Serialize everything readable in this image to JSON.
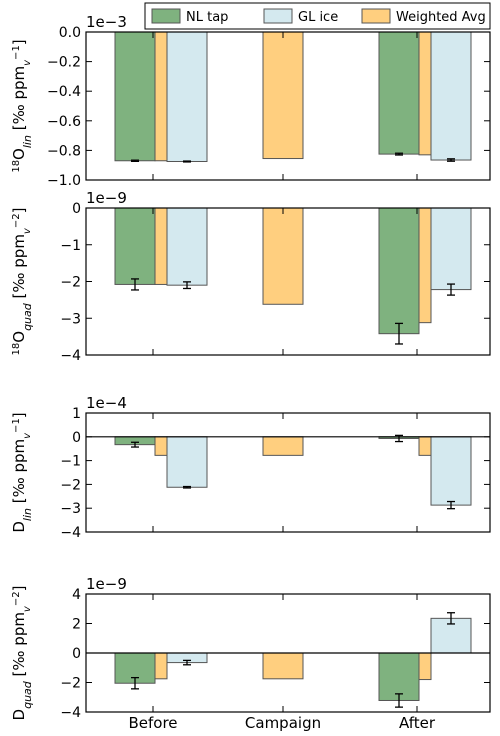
{
  "chart_data": [
    {
      "type": "bar",
      "categories": [
        "Before",
        "Campaign",
        "After"
      ],
      "ylabel": "18O_lin [‰ ppm_v^-1]",
      "ylabel_parts": {
        "sup": "18",
        "main": "O",
        "sub": "lin",
        "unit": " [‰ ppm",
        "unit_sub": "v",
        "unit_sup": "−1",
        "close": "]"
      },
      "multiplier": "1e−3",
      "ylim": [
        -1.0,
        0.0
      ],
      "yticks": [
        0.0,
        -0.2,
        -0.4,
        -0.6,
        -0.8,
        -1.0
      ],
      "ytick_labels": [
        "0.0",
        "−0.2",
        "−0.4",
        "−0.6",
        "−0.8",
        "−1.0"
      ],
      "series": [
        {
          "name": "NL tap",
          "values": [
            -0.87,
            null,
            -0.825
          ],
          "errors": [
            0.004,
            null,
            0.006
          ]
        },
        {
          "name": "Weighted Avg",
          "values": [
            -0.87,
            -0.855,
            -0.83
          ],
          "errors": [
            null,
            null,
            null
          ]
        },
        {
          "name": "GL ice",
          "values": [
            -0.875,
            null,
            -0.865
          ],
          "errors": [
            0.003,
            null,
            0.008
          ]
        }
      ]
    },
    {
      "type": "bar",
      "categories": [
        "Before",
        "Campaign",
        "After"
      ],
      "ylabel": "18O_quad [‰ ppm_v^-2]",
      "ylabel_parts": {
        "sup": "18",
        "main": "O",
        "sub": "quad",
        "unit": " [‰ ppm",
        "unit_sub": "v",
        "unit_sup": "−2",
        "close": "]"
      },
      "multiplier": "1e−9",
      "ylim": [
        -4,
        0
      ],
      "yticks": [
        0,
        -1,
        -2,
        -3,
        -4
      ],
      "ytick_labels": [
        "0",
        "−1",
        "−2",
        "−3",
        "−4"
      ],
      "series": [
        {
          "name": "NL tap",
          "values": [
            -2.08,
            null,
            -3.42
          ],
          "errors": [
            0.15,
            null,
            0.28
          ]
        },
        {
          "name": "Weighted Avg",
          "values": [
            -2.08,
            -2.62,
            -3.12
          ],
          "errors": [
            null,
            null,
            null
          ]
        },
        {
          "name": "GL ice",
          "values": [
            -2.1,
            null,
            -2.22
          ],
          "errors": [
            0.09,
            null,
            0.15
          ]
        }
      ]
    },
    {
      "type": "bar",
      "categories": [
        "Before",
        "Campaign",
        "After"
      ],
      "ylabel": "D_lin [‰ ppm_v^-1]",
      "ylabel_parts": {
        "sup": "",
        "main": "D",
        "sub": "lin",
        "unit": " [‰ ppm",
        "unit_sub": "v",
        "unit_sup": "−1",
        "close": "]"
      },
      "multiplier": "1e−4",
      "ylim": [
        -4,
        1
      ],
      "yticks": [
        1,
        0,
        -1,
        -2,
        -3,
        -4
      ],
      "ytick_labels": [
        "1",
        "0",
        "−1",
        "−2",
        "−3",
        "−4"
      ],
      "zero_line": true,
      "series": [
        {
          "name": "NL tap",
          "values": [
            -0.33,
            null,
            -0.07
          ],
          "errors": [
            0.1,
            null,
            0.13
          ]
        },
        {
          "name": "Weighted Avg",
          "values": [
            -0.78,
            -0.78,
            -0.78
          ],
          "errors": [
            null,
            null,
            null
          ]
        },
        {
          "name": "GL ice",
          "values": [
            -2.12,
            null,
            -2.87
          ],
          "errors": [
            0.03,
            null,
            0.15
          ]
        }
      ]
    },
    {
      "type": "bar",
      "categories": [
        "Before",
        "Campaign",
        "After"
      ],
      "ylabel": "D_quad [‰ ppm_v^-2]",
      "ylabel_parts": {
        "sup": "",
        "main": "D",
        "sub": "quad",
        "unit": " [‰ ppm",
        "unit_sub": "v",
        "unit_sup": "−2",
        "close": "]"
      },
      "multiplier": "1e−9",
      "ylim": [
        -4,
        4
      ],
      "yticks": [
        4,
        2,
        0,
        -2,
        -4
      ],
      "ytick_labels": [
        "4",
        "2",
        "0",
        "−2",
        "−4"
      ],
      "zero_line": true,
      "series": [
        {
          "name": "NL tap",
          "values": [
            -2.05,
            null,
            -3.22
          ],
          "errors": [
            0.38,
            null,
            0.45
          ]
        },
        {
          "name": "Weighted Avg",
          "values": [
            -1.75,
            -1.75,
            -1.8
          ],
          "errors": [
            null,
            null,
            null
          ]
        },
        {
          "name": "GL ice",
          "values": [
            -0.65,
            null,
            2.35
          ],
          "errors": [
            0.15,
            null,
            0.38
          ]
        }
      ]
    }
  ],
  "legend": {
    "placement": "top-right",
    "entries": [
      {
        "label": "NL tap",
        "color": "#7fb27f"
      },
      {
        "label": "GL ice",
        "color": "#d4e9ef"
      },
      {
        "label": "Weighted Avg",
        "color": "#ffcf7f"
      }
    ]
  },
  "colors": {
    "NL tap": "#7fb27f",
    "GL ice": "#d4e9ef",
    "Weighted Avg": "#ffcf7f",
    "edge": "#555555"
  }
}
